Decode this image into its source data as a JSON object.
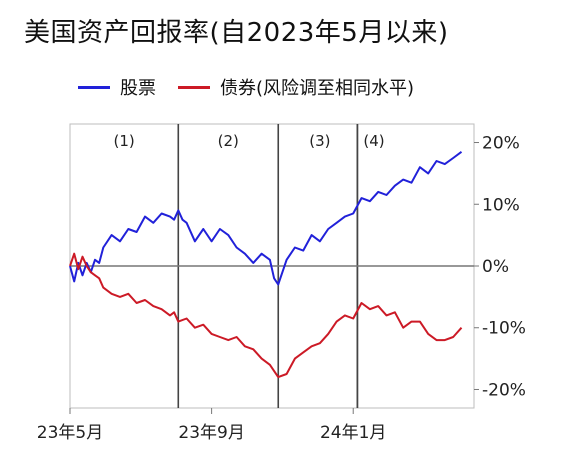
{
  "title": "美国资产回报率(自2023年5月以来)",
  "chart_data": {
    "type": "line",
    "title": "美国资产回报率(自2023年5月以来)",
    "x_unit": "trading weeks since 2023-05",
    "x_ticks": [
      {
        "x": 0,
        "label": "23年5月"
      },
      {
        "x": 17,
        "label": "23年9月"
      },
      {
        "x": 34,
        "label": "24年1月"
      }
    ],
    "y_ticks": [
      {
        "y": 20,
        "label": "20%"
      },
      {
        "y": 10,
        "label": "10%"
      },
      {
        "y": 0,
        "label": "0%"
      },
      {
        "y": -10,
        "label": "-10%"
      },
      {
        "y": -20,
        "label": "-20%"
      }
    ],
    "xlim": [
      0,
      48.5
    ],
    "ylim": [
      -23,
      23
    ],
    "grid": false,
    "legend_position": "top",
    "period_dividers": [
      {
        "x": 13,
        "label": "(1)"
      },
      {
        "x": 25,
        "label": "(2)"
      },
      {
        "x": 34.5,
        "label": "(3)"
      },
      {
        "x": 34.5,
        "label": "(4)"
      }
    ],
    "period_label_positions": [
      6.5,
      19,
      30,
      36.5
    ],
    "series": [
      {
        "name": "股票",
        "color": "#2121d9",
        "x": [
          0,
          0.5,
          1,
          1.5,
          2,
          2.5,
          3,
          3.5,
          4,
          5,
          6,
          7,
          8,
          9,
          10,
          11,
          12,
          12.5,
          13,
          13.5,
          14,
          15,
          16,
          17,
          18,
          19,
          20,
          21,
          22,
          23,
          24,
          24.5,
          25,
          25.5,
          26,
          27,
          28,
          29,
          30,
          31,
          32,
          33,
          34,
          35,
          36,
          37,
          38,
          39,
          40,
          41,
          42,
          43,
          44,
          45,
          46,
          47
        ],
        "values": [
          0,
          -2.5,
          0.5,
          -1.5,
          0.5,
          -1,
          1,
          0.5,
          3,
          5,
          4,
          6,
          5.5,
          8,
          7,
          8.5,
          8,
          7.5,
          9,
          7.5,
          7,
          4,
          6,
          4,
          6,
          5,
          3,
          2,
          0.5,
          2,
          1,
          -2,
          -3,
          -1,
          1,
          3,
          2.5,
          5,
          4,
          6,
          7,
          8,
          8.5,
          11,
          10.5,
          12,
          11.5,
          13,
          14,
          13.5,
          16,
          15,
          17,
          16.5,
          17.5,
          18.5
        ]
      },
      {
        "name": "债券(风险调至相同水平)",
        "color": "#cc1a26",
        "x": [
          0,
          0.5,
          1,
          1.5,
          2,
          2.5,
          3,
          3.5,
          4,
          5,
          6,
          7,
          8,
          9,
          10,
          11,
          12,
          12.5,
          13,
          14,
          15,
          16,
          17,
          18,
          19,
          20,
          21,
          22,
          23,
          24,
          25,
          26,
          27,
          28,
          29,
          30,
          31,
          32,
          33,
          34,
          35,
          36,
          37,
          38,
          39,
          40,
          41,
          42,
          43,
          44,
          45,
          46,
          47
        ],
        "values": [
          0,
          2,
          -0.5,
          1.5,
          0,
          -1,
          -1.5,
          -2,
          -3.5,
          -4.5,
          -5,
          -4.5,
          -6,
          -5.5,
          -6.5,
          -7,
          -8,
          -7.5,
          -9,
          -8.5,
          -10,
          -9.5,
          -11,
          -11.5,
          -12,
          -11.5,
          -13,
          -13.5,
          -15,
          -16,
          -18,
          -17.5,
          -15,
          -14,
          -13,
          -12.5,
          -11,
          -9,
          -8,
          -8.5,
          -6,
          -7,
          -6.5,
          -8,
          -7.5,
          -10,
          -9,
          -9,
          -11,
          -12,
          -12,
          -11.5,
          -10
        ]
      }
    ]
  }
}
